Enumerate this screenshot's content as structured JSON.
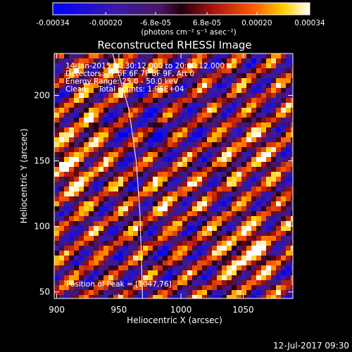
{
  "chart_data": {
    "type": "heatmap",
    "title": "Reconstructed RHESSI Image",
    "xlabel": "Heliocentric X (arcsec)",
    "ylabel": "Heliocentric Y (arcsec)",
    "xlim": [
      898,
      1090
    ],
    "ylim": [
      45,
      232
    ],
    "x_ticks": [
      900,
      950,
      1000,
      1050
    ],
    "y_ticks": [
      50,
      100,
      150,
      200
    ],
    "x_tick_labels": [
      "900",
      "950",
      "1000",
      "1050"
    ],
    "y_tick_labels": [
      "50",
      "100",
      "150",
      "200"
    ],
    "colorbar": {
      "colormap": "blue-purple-red-yellow-white",
      "range": [
        -0.00034,
        0.00034
      ],
      "tick_labels": [
        "-0.00034",
        "-0.00020",
        "-6.8e-05",
        "6.8e-05",
        "0.00020",
        "0.00034"
      ],
      "unit_label": "(photons cm⁻² s⁻¹ asec⁻²)"
    },
    "annotations": {
      "time_range": "14-Jan-2015 20:30:12.000 to 20:40:12.000",
      "detectors": "Detectors: 3F 5F 6F 7F 8F 9F, Att 0",
      "energy_range": "Energy Range: 25.0 - 50.0 keV",
      "method_counts": "Clean     Total counts: 1.96E+04",
      "peak_position": "Position of Peak = [1047,76]"
    },
    "peak": {
      "x": 1047,
      "y": 76
    },
    "limb_curve": [
      [
        945,
        232
      ],
      [
        958,
        190
      ],
      [
        964,
        150
      ],
      [
        967,
        110
      ],
      [
        968,
        80
      ],
      [
        969,
        45
      ]
    ]
  },
  "footer": {
    "date": "12-Jul-2017 09:30"
  }
}
